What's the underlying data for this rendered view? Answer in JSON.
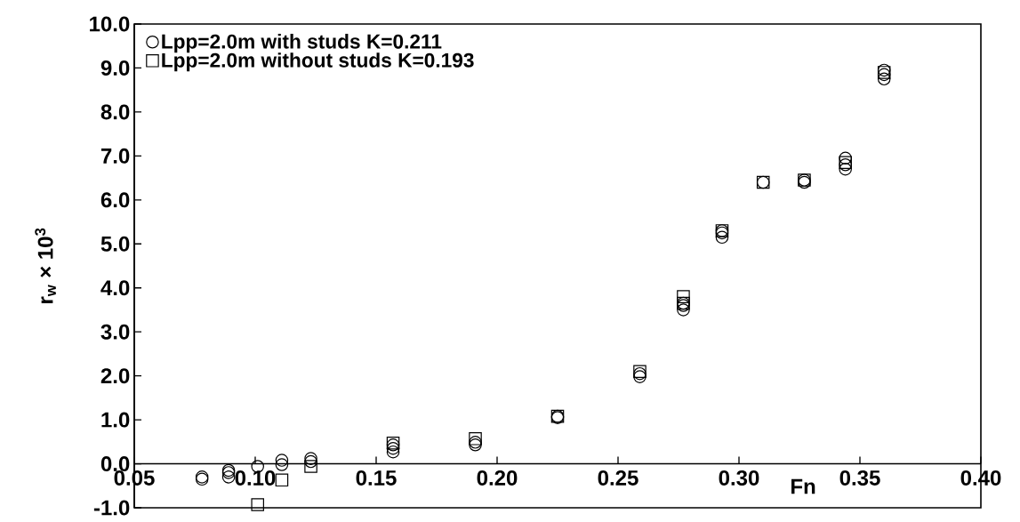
{
  "chart_data": {
    "type": "scatter",
    "xlabel": "Fn",
    "ylabel": "r$_{w}$ × 10$^{3}$",
    "xlim": [
      0.05,
      0.4
    ],
    "ylim": [
      -1.0,
      10.0
    ],
    "xticks": [
      {
        "value": 0.05,
        "label": "0.05"
      },
      {
        "value": 0.1,
        "label": "0.10"
      },
      {
        "value": 0.15,
        "label": "0.15"
      },
      {
        "value": 0.2,
        "label": "0.20"
      },
      {
        "value": 0.25,
        "label": "0.25"
      },
      {
        "value": 0.3,
        "label": "0.30"
      },
      {
        "value": 0.35,
        "label": "0.35"
      },
      {
        "value": 0.4,
        "label": "0.40"
      }
    ],
    "yticks": [
      {
        "value": -1,
        "label": "-1.0"
      },
      {
        "value": 0,
        "label": "0.0"
      },
      {
        "value": 1,
        "label": "1.0"
      },
      {
        "value": 2,
        "label": "2.0"
      },
      {
        "value": 3,
        "label": "3.0"
      },
      {
        "value": 4,
        "label": "4.0"
      },
      {
        "value": 5,
        "label": "5.0"
      },
      {
        "value": 6,
        "label": "6.0"
      },
      {
        "value": 7,
        "label": "7.0"
      },
      {
        "value": 8,
        "label": "8.0"
      },
      {
        "value": 9,
        "label": "9.0"
      },
      {
        "value": 10,
        "label": "10.0"
      }
    ],
    "legend": "top left",
    "series": [
      {
        "name": "Lpp=2.0m with studs K=0.211",
        "color": "#000000",
        "marker": "circle",
        "x": [
          0.078,
          0.078,
          0.089,
          0.089,
          0.089,
          0.101,
          0.111,
          0.111,
          0.123,
          0.123,
          0.157,
          0.157,
          0.157,
          0.191,
          0.191,
          0.225,
          0.225,
          0.259,
          0.259,
          0.277,
          0.277,
          0.277,
          0.293,
          0.293,
          0.293,
          0.31,
          0.327,
          0.327,
          0.344,
          0.344,
          0.344,
          0.36,
          0.36,
          0.36
        ],
        "values": [
          -0.3,
          -0.35,
          -0.15,
          -0.2,
          -0.3,
          -0.06,
          0.08,
          -0.02,
          0.12,
          0.05,
          0.27,
          0.35,
          0.43,
          0.43,
          0.49,
          1.05,
          1.08,
          1.98,
          2.05,
          3.5,
          3.6,
          3.65,
          5.15,
          5.25,
          5.3,
          6.4,
          6.4,
          6.45,
          6.7,
          6.8,
          6.95,
          8.75,
          8.85,
          8.95
        ]
      },
      {
        "name": "Lpp=2.0m without studs K=0.193",
        "color": "#000000",
        "marker": "square",
        "x": [
          0.101,
          0.111,
          0.123,
          0.157,
          0.191,
          0.225,
          0.259,
          0.277,
          0.277,
          0.293,
          0.31,
          0.327,
          0.344,
          0.36
        ],
        "values": [
          -0.93,
          -0.37,
          -0.06,
          0.47,
          0.57,
          1.08,
          2.1,
          3.65,
          3.8,
          5.3,
          6.4,
          6.45,
          6.85,
          8.9
        ]
      }
    ]
  }
}
